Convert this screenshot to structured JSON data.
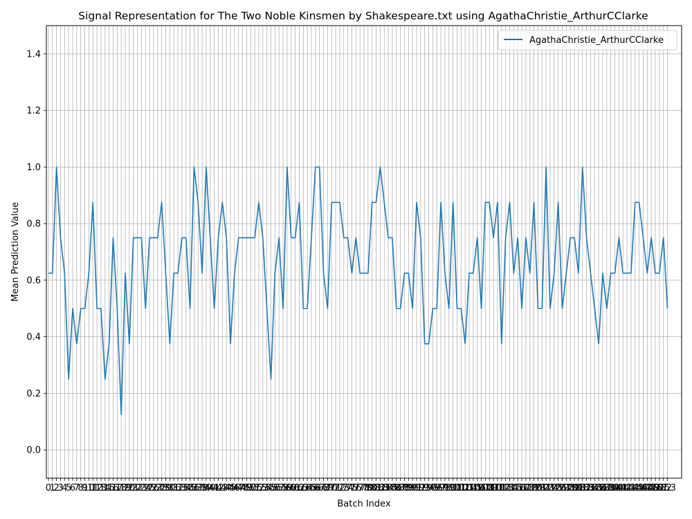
{
  "chart_data": {
    "type": "line",
    "title": "Signal Representation for The Two Noble Kinsmen by Shakespeare.txt using AgathaChristie_ArthurCClarke",
    "xlabel": "Batch Index",
    "ylabel": "Mean Prediction Value",
    "xlim": [
      -0.5,
      156.5
    ],
    "ylim": [
      -0.1,
      1.5
    ],
    "yticks": [
      0.0,
      0.2,
      0.4,
      0.6,
      0.8,
      1.0,
      1.2,
      1.4
    ],
    "ytick_labels": [
      "0.0",
      "0.2",
      "0.4",
      "0.6",
      "0.8",
      "1.0",
      "1.2",
      "1.4"
    ],
    "grid": true,
    "legend_position": "top-right",
    "colors": {
      "series": "#1f77b4",
      "grid": "#b0b0b0"
    },
    "series": [
      {
        "name": "AgathaChristie_ArthurCClarke",
        "values": [
          0.625,
          0.625,
          1.0,
          0.75,
          0.625,
          0.25,
          0.5,
          0.375,
          0.5,
          0.5,
          0.625,
          0.875,
          0.5,
          0.5,
          0.25,
          0.375,
          0.75,
          0.5,
          0.125,
          0.625,
          0.375,
          0.75,
          0.75,
          0.75,
          0.5,
          0.75,
          0.75,
          0.75,
          0.875,
          0.625,
          0.375,
          0.625,
          0.625,
          0.75,
          0.75,
          0.5,
          1.0,
          0.875,
          0.625,
          1.0,
          0.75,
          0.5,
          0.75,
          0.875,
          0.75,
          0.375,
          0.625,
          0.75,
          0.75,
          0.75,
          0.75,
          0.75,
          0.875,
          0.75,
          0.5,
          0.25,
          0.625,
          0.75,
          0.5,
          1.0,
          0.75,
          0.75,
          0.875,
          0.5,
          0.5,
          0.75,
          1.0,
          1.0,
          0.625,
          0.5,
          0.875,
          0.875,
          0.875,
          0.75,
          0.75,
          0.625,
          0.75,
          0.625,
          0.625,
          0.625,
          0.875,
          0.875,
          1.0,
          0.875,
          0.75,
          0.75,
          0.5,
          0.5,
          0.625,
          0.625,
          0.5,
          0.875,
          0.75,
          0.375,
          0.375,
          0.5,
          0.5,
          0.875,
          0.625,
          0.5,
          0.875,
          0.5,
          0.5,
          0.375,
          0.625,
          0.625,
          0.75,
          0.5,
          0.875,
          0.875,
          0.75,
          0.875,
          0.375,
          0.75,
          0.875,
          0.625,
          0.75,
          0.5,
          0.75,
          0.625,
          0.875,
          0.5,
          0.5,
          1.0,
          0.5,
          0.625,
          0.875,
          0.5,
          0.625,
          0.75,
          0.75,
          0.625,
          1.0,
          0.75,
          0.625,
          0.5,
          0.375,
          0.625,
          0.5,
          0.625,
          0.625,
          0.75,
          0.625,
          0.625,
          0.625,
          0.875,
          0.875,
          0.75,
          0.625,
          0.75,
          0.625,
          0.625,
          0.75,
          0.5
        ]
      }
    ]
  }
}
